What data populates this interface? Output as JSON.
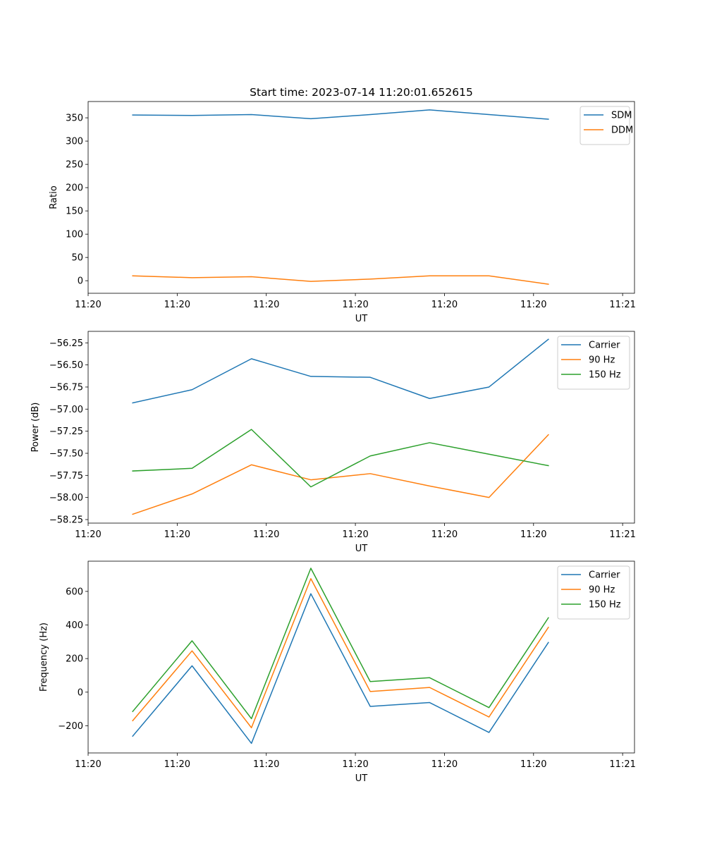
{
  "title": "Start time: 2023-07-14 11:20:01.652615",
  "colors": {
    "blue": "#1f77b4",
    "orange": "#ff7f0e",
    "green": "#2ca02c"
  },
  "chart_data": [
    {
      "type": "line",
      "title": "Start time: 2023-07-14 11:20:01.652615",
      "xlabel": "UT",
      "ylabel": "Ratio",
      "x_index": [
        0,
        1,
        2,
        3,
        4,
        5,
        6,
        7
      ],
      "xlim": [
        -0.75,
        8.45
      ],
      "xticks": [
        -0.75,
        0.75,
        2.25,
        3.75,
        5.25,
        6.75,
        8.25
      ],
      "xtick_labels": [
        "11:20",
        "11:20",
        "11:20",
        "11:20",
        "11:20",
        "11:20",
        "11:21"
      ],
      "ylim": [
        -27,
        385
      ],
      "yticks": [
        0,
        50,
        100,
        150,
        200,
        250,
        300,
        350
      ],
      "ytick_labels": [
        "0",
        "50",
        "100",
        "150",
        "200",
        "250",
        "300",
        "350"
      ],
      "legend": "top-right",
      "series": [
        {
          "name": "SDM",
          "color": "#1f77b4",
          "values": [
            356,
            355,
            357,
            348,
            357,
            367,
            357,
            347
          ]
        },
        {
          "name": "DDM",
          "color": "#ff7f0e",
          "values": [
            10.5,
            6.5,
            8.5,
            -1.5,
            3.5,
            10.5,
            10.5,
            -7.5
          ]
        }
      ]
    },
    {
      "type": "line",
      "title": "",
      "xlabel": "UT",
      "ylabel": "Power (dB)",
      "x_index": [
        0,
        1,
        2,
        3,
        4,
        5,
        6,
        7
      ],
      "xlim": [
        -0.75,
        8.45
      ],
      "xticks": [
        -0.75,
        0.75,
        2.25,
        3.75,
        5.25,
        6.75,
        8.25
      ],
      "xtick_labels": [
        "11:20",
        "11:20",
        "11:20",
        "11:20",
        "11:20",
        "11:20",
        "11:21"
      ],
      "ylim": [
        -58.29,
        -56.12
      ],
      "yticks": [
        -58.25,
        -58.0,
        -57.75,
        -57.5,
        -57.25,
        -57.0,
        -56.75,
        -56.5,
        -56.25
      ],
      "ytick_labels": [
        "−58.25",
        "−58.00",
        "−57.75",
        "−57.50",
        "−57.25",
        "−57.00",
        "−56.75",
        "−56.50",
        "−56.25"
      ],
      "legend": "top-right",
      "series": [
        {
          "name": "Carrier",
          "color": "#1f77b4",
          "values": [
            -56.93,
            -56.78,
            -56.43,
            -56.63,
            -56.64,
            -56.88,
            -56.75,
            -56.21
          ]
        },
        {
          "name": "90 Hz",
          "color": "#ff7f0e",
          "values": [
            -58.19,
            -57.96,
            -57.63,
            -57.8,
            -57.73,
            -57.87,
            -58.0,
            -57.29
          ]
        },
        {
          "name": "150 Hz",
          "color": "#2ca02c",
          "values": [
            -57.7,
            -57.67,
            -57.23,
            -57.88,
            -57.53,
            -57.38,
            -57.51,
            -57.64
          ]
        }
      ]
    },
    {
      "type": "line",
      "title": "",
      "xlabel": "UT",
      "ylabel": "Frequency (Hz)",
      "x_index": [
        0,
        1,
        2,
        3,
        4,
        5,
        6,
        7
      ],
      "xlim": [
        -0.75,
        8.45
      ],
      "xticks": [
        -0.75,
        0.75,
        2.25,
        3.75,
        5.25,
        6.75,
        8.25
      ],
      "xtick_labels": [
        "11:20",
        "11:20",
        "11:20",
        "11:20",
        "11:20",
        "11:20",
        "11:21"
      ],
      "ylim": [
        -362,
        780
      ],
      "yticks": [
        -200,
        0,
        200,
        400,
        600
      ],
      "ytick_labels": [
        "−200",
        "0",
        "200",
        "400",
        "600"
      ],
      "legend": "top-right",
      "series": [
        {
          "name": "Carrier",
          "color": "#1f77b4",
          "values": [
            -262,
            157,
            -305,
            586,
            -85,
            -62,
            -240,
            296
          ]
        },
        {
          "name": "90 Hz",
          "color": "#ff7f0e",
          "values": [
            -170,
            246,
            -212,
            676,
            4,
            28,
            -148,
            386
          ]
        },
        {
          "name": "150 Hz",
          "color": "#2ca02c",
          "values": [
            -115,
            306,
            -158,
            738,
            63,
            86,
            -92,
            443
          ]
        }
      ]
    }
  ]
}
